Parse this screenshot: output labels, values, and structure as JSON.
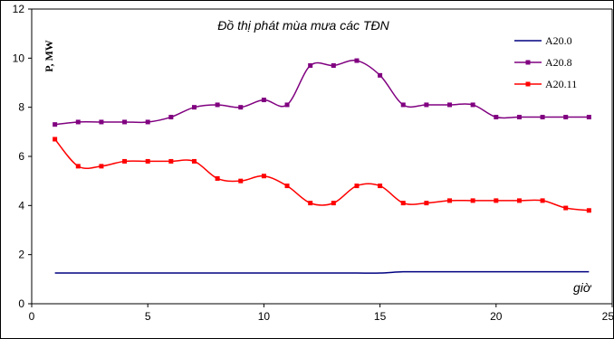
{
  "chart_data": {
    "type": "line",
    "title": "Đồ thị phát mùa mưa các TĐN",
    "xlabel": "giờ",
    "ylabel": "P, MW",
    "xlim": [
      0,
      25
    ],
    "ylim": [
      0,
      12
    ],
    "x_ticks": [
      "0",
      "5",
      "10",
      "15",
      "20",
      "25"
    ],
    "y_ticks": [
      "0",
      "2",
      "4",
      "6",
      "8",
      "10",
      "12"
    ],
    "legend_position": "top-right",
    "x": [
      1,
      2,
      3,
      4,
      5,
      6,
      7,
      8,
      9,
      10,
      11,
      12,
      13,
      14,
      15,
      16,
      17,
      18,
      19,
      20,
      21,
      22,
      23,
      24
    ],
    "series": [
      {
        "name": "A20.0",
        "color": "#000080",
        "marker": "none",
        "values": [
          1.25,
          1.25,
          1.25,
          1.25,
          1.25,
          1.25,
          1.25,
          1.25,
          1.25,
          1.25,
          1.25,
          1.25,
          1.25,
          1.25,
          1.25,
          1.3,
          1.3,
          1.3,
          1.3,
          1.3,
          1.3,
          1.3,
          1.3,
          1.3
        ]
      },
      {
        "name": "A20.8",
        "color": "#800080",
        "marker": "square",
        "values": [
          7.3,
          7.4,
          7.4,
          7.4,
          7.4,
          7.6,
          8.0,
          8.1,
          8.0,
          8.3,
          8.1,
          9.7,
          9.7,
          9.9,
          9.3,
          8.1,
          8.1,
          8.1,
          8.1,
          7.6,
          7.6,
          7.6,
          7.6,
          7.6
        ]
      },
      {
        "name": "A20.11",
        "color": "#ff0000",
        "marker": "square",
        "values": [
          6.7,
          5.6,
          5.6,
          5.8,
          5.8,
          5.8,
          5.8,
          5.1,
          5.0,
          5.2,
          4.8,
          4.1,
          4.1,
          4.8,
          4.8,
          4.1,
          4.1,
          4.2,
          4.2,
          4.2,
          4.2,
          4.2,
          3.9,
          3.8
        ]
      }
    ]
  }
}
